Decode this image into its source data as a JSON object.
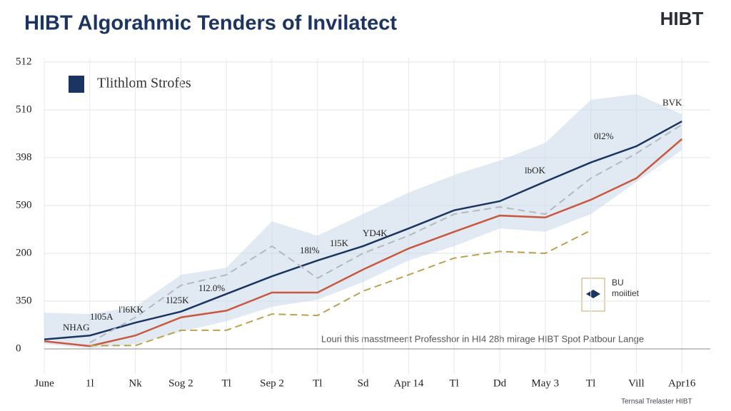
{
  "chart_data": {
    "type": "line",
    "title": "HIBT Algorahmic Tenders of Invilatect",
    "logo": "HIBT",
    "legend": "Tlithlom Strofes",
    "footer_note": "Louri this masstmeent Professhor in HI4 28h mirage HIBT Spot Patbour Lange",
    "badge": [
      "BU",
      "moiitiet"
    ],
    "credit": "Ternsal Trelaster HIBT",
    "categories": [
      "June",
      "1l",
      "Nk",
      "Sog 2",
      "Tl",
      "Sep 2",
      "Tl",
      "Sd",
      "Apr 14",
      "Tl",
      "Dd",
      "May 3",
      "Tl",
      "Vill",
      "Apr16"
    ],
    "ylim": [
      0,
      6
    ],
    "yticks": [
      {
        "value": 0,
        "label": "0"
      },
      {
        "value": 1,
        "label": "350"
      },
      {
        "value": 2,
        "label": "200"
      },
      {
        "value": 3,
        "label": "590"
      },
      {
        "value": 4,
        "label": "398"
      },
      {
        "value": 5,
        "label": "510"
      },
      {
        "value": 6,
        "label": "512"
      }
    ],
    "grid": true,
    "band": {
      "color": "#c9d8ea",
      "upper": [
        0.76,
        0.73,
        0.88,
        1.55,
        1.7,
        2.67,
        2.37,
        2.82,
        3.27,
        3.64,
        3.94,
        4.31,
        5.21,
        5.33,
        4.91
      ],
      "lower": [
        0.1,
        0.01,
        0.1,
        0.36,
        0.58,
        0.88,
        1.03,
        1.4,
        1.85,
        2.15,
        2.52,
        2.45,
        2.82,
        3.49,
        4.16
      ]
    },
    "series": [
      {
        "name": "Tlithlom Strofes",
        "color": "#1c3461",
        "dash": false,
        "values": [
          0.2,
          0.28,
          0.55,
          0.78,
          1.15,
          1.52,
          1.85,
          2.15,
          2.52,
          2.9,
          3.09,
          3.5,
          3.9,
          4.24,
          4.76
        ]
      },
      {
        "color": "#c9583e",
        "dash": false,
        "values": [
          0.16,
          0.06,
          0.28,
          0.66,
          0.8,
          1.18,
          1.18,
          1.66,
          2.1,
          2.45,
          2.79,
          2.75,
          3.12,
          3.57,
          4.39
        ]
      },
      {
        "color": "#bba24e",
        "dash": true,
        "values": [
          null,
          0.07,
          0.07,
          0.39,
          0.39,
          0.73,
          0.7,
          1.21,
          1.55,
          1.9,
          2.04,
          2.0,
          2.48,
          null,
          null
        ]
      },
      {
        "color": "#b4b8bf",
        "dash": true,
        "values": [
          null,
          0.13,
          0.66,
          1.33,
          1.55,
          2.15,
          1.48,
          2.0,
          2.37,
          2.82,
          2.97,
          2.82,
          3.57,
          4.09,
          4.69
        ]
      }
    ],
    "annotations": [
      "NHAG",
      "1l05A",
      "l'l6KK",
      "1l25K",
      "1l2.0%",
      "18l%",
      "1l5K",
      "YD4K",
      "lbOK",
      "0l2%",
      "BVK"
    ]
  }
}
